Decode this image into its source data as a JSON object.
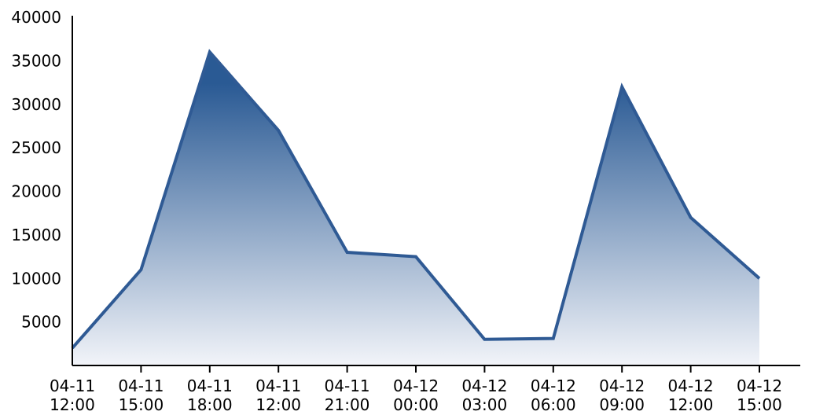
{
  "chart_data": {
    "type": "area",
    "title": "",
    "xlabel": "",
    "ylabel": "",
    "categories": [
      [
        "04-11",
        "12:00"
      ],
      [
        "04-11",
        "15:00"
      ],
      [
        "04-11",
        "18:00"
      ],
      [
        "04-11",
        "12:00"
      ],
      [
        "04-11",
        "21:00"
      ],
      [
        "04-12",
        "00:00"
      ],
      [
        "04-12",
        "03:00"
      ],
      [
        "04-12",
        "06:00"
      ],
      [
        "04-12",
        "09:00"
      ],
      [
        "04-12",
        "12:00"
      ],
      [
        "04-12",
        "15:00"
      ]
    ],
    "series": [
      {
        "values": [
          2000,
          11000,
          36000,
          27000,
          13000,
          12500,
          3000,
          3100,
          32000,
          17000,
          10000
        ]
      }
    ],
    "ylim": [
      0,
      40000
    ],
    "yticks": [
      5000,
      10000,
      15000,
      20000,
      25000,
      30000,
      35000,
      40000
    ],
    "grid": false,
    "legend": "none",
    "colors": {
      "line": "#2f5a94",
      "fill_top": "#2a5a94",
      "fill_bottom": "#f2f4f9",
      "axis": "#000000"
    }
  }
}
